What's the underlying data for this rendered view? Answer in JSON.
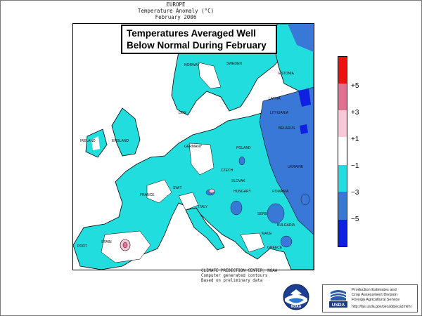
{
  "header": {
    "line1": "EUROPE",
    "line2": "Temperature Anomaly (°C)",
    "line3": "February 2006"
  },
  "callout": {
    "line1": "Temperatures Averaged Well",
    "line2": "Below Normal During February"
  },
  "legend": {
    "labels": [
      "+5",
      "+3",
      "+1",
      "−1",
      "−3",
      "−5"
    ],
    "colors": [
      "#ee1111",
      "#e07090",
      "#f8c8d8",
      "#ffffff",
      "#22dddd",
      "#3a78d8",
      "#1020e0"
    ]
  },
  "colors": {
    "sea": "#ffffff",
    "cold_1_3": "#22dddd",
    "cold_3_5": "#3a78d8",
    "cold_5": "#1020e0"
  },
  "countries": {
    "norway": "NORWAY",
    "sweden": "SWEDEN",
    "estonia": "ESTONIA",
    "latvia": "LATVIA",
    "lithuania": "LITHUANIA",
    "belarus": "BELARUS",
    "denmark": "DEN",
    "ireland": "IRELAND",
    "england": "ENGLAND",
    "germany": "GERMANY",
    "poland": "POLAND",
    "ukraine": "UKRAINE",
    "czech": "CZECH",
    "slovak": "SLOVAK",
    "hungary": "HUNGARY",
    "romania": "ROMANIA",
    "france": "FRANCE",
    "switzerland": "SWIT",
    "italy": "ITALY",
    "serbia": "SERB",
    "bulgaria": "BULGARIA",
    "macedonia": "MACE",
    "greece": "GREECE",
    "spain": "SPAIN",
    "portugal": "PORT"
  },
  "credits": {
    "line1": "CLIMATE PREDICTION CENTER, NOAA",
    "line2": "Computer generated contours",
    "line3": "Based on preliminary data"
  },
  "logos": {
    "noaa": "NOAA",
    "usda": "USDA"
  },
  "usda_box": {
    "line1": "Production Estimates and",
    "line2": "Crop Assessment Division",
    "line3": "Foreign Agricultural Service",
    "url": "http://fas.usda.gov/pecad/pecad.html"
  }
}
